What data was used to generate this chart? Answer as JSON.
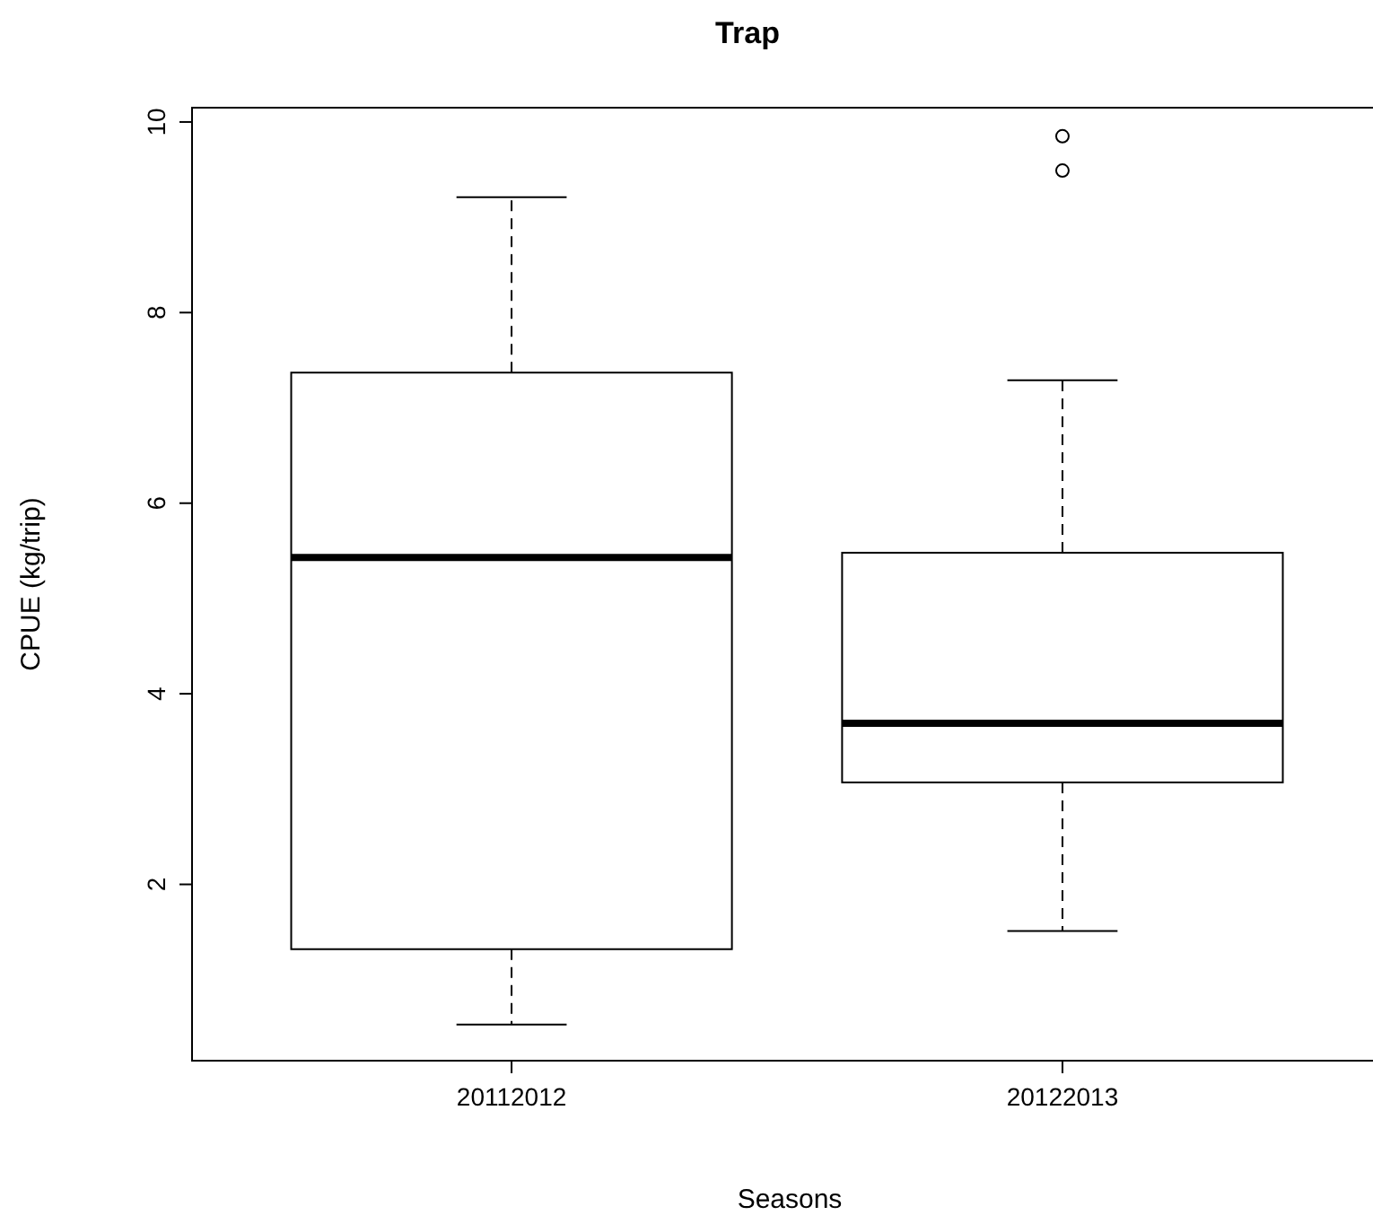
{
  "chart_data": {
    "type": "box",
    "title": "Trap",
    "xlabel": "Seasons",
    "ylabel": "CPUE (kg/trip)",
    "categories": [
      "20112012",
      "20122013"
    ],
    "boxes": [
      {
        "low": 0.53,
        "q1": 1.32,
        "median": 5.43,
        "q3": 7.37,
        "high": 9.21
      },
      {
        "low": 1.51,
        "q1": 3.07,
        "median": 3.69,
        "q3": 5.48,
        "high": 7.29,
        "outliers": [
          9.49,
          9.85
        ]
      }
    ],
    "ylim": [
      0.15,
      10.15
    ],
    "yticks": [
      2,
      4,
      6,
      8,
      10
    ],
    "grid": false
  }
}
